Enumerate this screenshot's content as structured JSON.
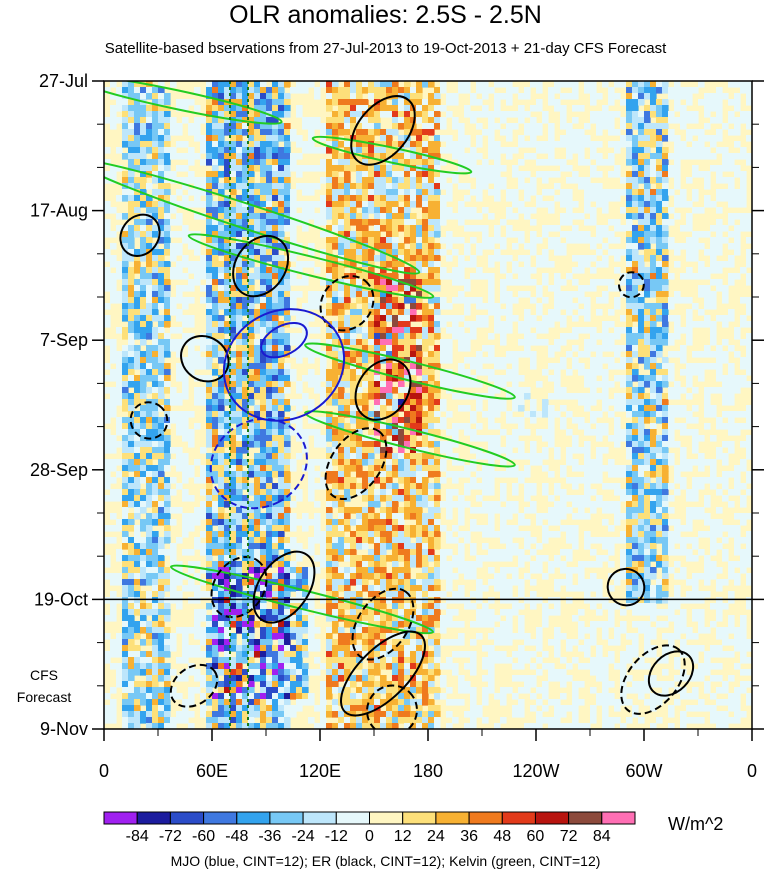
{
  "chart_data": {
    "type": "heatmap",
    "title": "OLR anomalies: 2.5S - 2.5N",
    "subtitle": "Satellite-based bservations from 27-Jul-2013 to 19-Oct-2013 + 21-day CFS Forecast",
    "y_ticks": [
      "27-Jul",
      "17-Aug",
      "7-Sep",
      "28-Sep",
      "19-Oct",
      "9-Nov"
    ],
    "y_tick_days": [
      0,
      21,
      42,
      63,
      84,
      105
    ],
    "y_range": [
      0,
      105
    ],
    "x_ticks": [
      "0",
      "60E",
      "120E",
      "180",
      "120W",
      "60W",
      "0"
    ],
    "x_tick_lon": [
      0,
      60,
      120,
      180,
      240,
      300,
      360
    ],
    "x_range": [
      0,
      360
    ],
    "forecast_start": "19-Oct",
    "forecast_start_day": 84,
    "forecast_label": [
      "CFS",
      "Forecast"
    ],
    "colorbar": {
      "levels": [
        "-84",
        "-72",
        "-60",
        "-48",
        "-36",
        "-24",
        "-12",
        "0",
        "12",
        "24",
        "36",
        "48",
        "60",
        "72",
        "84"
      ],
      "colors": [
        "#a020f0",
        "#1c1c9e",
        "#2b4cc8",
        "#3f78e0",
        "#33a3ee",
        "#77c8f5",
        "#bde6fb",
        "#e6f8fb",
        "#fff6c2",
        "#fde07a",
        "#f7b133",
        "#ef7a1e",
        "#e23a1a",
        "#b8140f",
        "#8c4a3c",
        "#ff6fb4"
      ],
      "units": "W/m^2"
    },
    "legend_text": "MJO (blue, CINT=12); ER (black, CINT=12); Kelvin (green, CINT=12)",
    "reference_lines_lon": [
      70,
      80
    ],
    "features": [
      {
        "kind": "convection_band",
        "lon": [
          10,
          35
        ],
        "day": [
          0,
          105
        ],
        "value": -30
      },
      {
        "kind": "convection_band",
        "lon": [
          55,
          100
        ],
        "day": [
          0,
          105
        ],
        "value": -40
      },
      {
        "kind": "enhanced_band",
        "lon": [
          120,
          185
        ],
        "day": [
          0,
          105
        ],
        "value": 30
      },
      {
        "kind": "convection_band",
        "lon": [
          290,
          310
        ],
        "day": [
          0,
          84
        ],
        "value": -35
      },
      {
        "kind": "suppressed_spot",
        "lon": [
          150,
          175
        ],
        "day": [
          30,
          60
        ],
        "value": 45
      },
      {
        "kind": "convection_spot",
        "lon": [
          230,
          245
        ],
        "day": [
          50,
          54
        ],
        "value": -40
      },
      {
        "kind": "convection_spot",
        "lon": [
          60,
          110
        ],
        "day": [
          78,
          100
        ],
        "value": -35
      }
    ],
    "mjo_contours": [
      {
        "lon": 100,
        "day": 46,
        "rx": 30,
        "ry": 10,
        "angle": 62,
        "dashed": false
      },
      {
        "lon": 100,
        "day": 42,
        "rx": 8,
        "ry": 4,
        "angle": 62,
        "dashed": false
      },
      {
        "lon": 86,
        "day": 62,
        "rx": 24,
        "ry": 8,
        "angle": 62,
        "dashed": true
      }
    ],
    "er_contours": [
      {
        "lon": 20,
        "day": 25,
        "rx": 12,
        "ry": 3,
        "angle": -55,
        "dashed": false
      },
      {
        "lon": 87,
        "day": 30,
        "rx": 18,
        "ry": 4,
        "angle": -55,
        "dashed": false
      },
      {
        "lon": 155,
        "day": 8,
        "rx": 22,
        "ry": 4,
        "angle": -50,
        "dashed": false
      },
      {
        "lon": 135,
        "day": 36,
        "rx": 16,
        "ry": 4,
        "angle": -50,
        "dashed": true
      },
      {
        "lon": 56,
        "day": 45,
        "rx": 12,
        "ry": 4,
        "angle": -55,
        "dashed": false
      },
      {
        "lon": 25,
        "day": 55,
        "rx": 10,
        "ry": 3,
        "angle": -55,
        "dashed": true
      },
      {
        "lon": 155,
        "day": 50,
        "rx": 18,
        "ry": 4,
        "angle": -55,
        "dashed": false
      },
      {
        "lon": 140,
        "day": 62,
        "rx": 22,
        "ry": 4,
        "angle": -55,
        "dashed": true
      },
      {
        "lon": 75,
        "day": 82,
        "rx": 18,
        "ry": 4,
        "angle": -55,
        "dashed": true
      },
      {
        "lon": 100,
        "day": 82,
        "rx": 22,
        "ry": 4,
        "angle": -55,
        "dashed": false
      },
      {
        "lon": 155,
        "day": 88,
        "rx": 22,
        "ry": 4,
        "angle": -55,
        "dashed": true
      },
      {
        "lon": 155,
        "day": 96,
        "rx": 30,
        "ry": 4,
        "angle": -45,
        "dashed": false
      },
      {
        "lon": 160,
        "day": 102,
        "rx": 14,
        "ry": 4,
        "angle": -45,
        "dashed": true
      },
      {
        "lon": 50,
        "day": 98,
        "rx": 14,
        "ry": 3,
        "angle": -35,
        "dashed": true
      },
      {
        "lon": 290,
        "day": 82,
        "rx": 10,
        "ry": 3,
        "angle": -50,
        "dashed": false
      },
      {
        "lon": 305,
        "day": 97,
        "rx": 22,
        "ry": 4,
        "angle": -50,
        "dashed": true
      },
      {
        "lon": 315,
        "day": 96,
        "rx": 14,
        "ry": 3,
        "angle": -45,
        "dashed": false
      },
      {
        "lon": 293,
        "day": 33,
        "rx": 7,
        "ry": 2,
        "angle": -55,
        "dashed": true
      }
    ],
    "kelvin_contours": [
      {
        "lon": 80,
        "day": 22,
        "rx": 100,
        "ry": 2,
        "angle": 18,
        "dashed": false
      },
      {
        "lon": 40,
        "day": 3,
        "rx": 60,
        "ry": 1.5,
        "angle": 12,
        "dashed": false
      },
      {
        "lon": 115,
        "day": 30,
        "rx": 70,
        "ry": 1.5,
        "angle": 14,
        "dashed": false
      },
      {
        "lon": 170,
        "day": 47,
        "rx": 60,
        "ry": 1.5,
        "angle": 14,
        "dashed": false
      },
      {
        "lon": 170,
        "day": 58,
        "rx": 60,
        "ry": 1.5,
        "angle": 14,
        "dashed": false
      },
      {
        "lon": 110,
        "day": 84,
        "rx": 75,
        "ry": 1.5,
        "angle": 14,
        "dashed": false
      },
      {
        "lon": 160,
        "day": 12,
        "rx": 45,
        "ry": 1.2,
        "angle": 12,
        "dashed": false
      }
    ]
  }
}
